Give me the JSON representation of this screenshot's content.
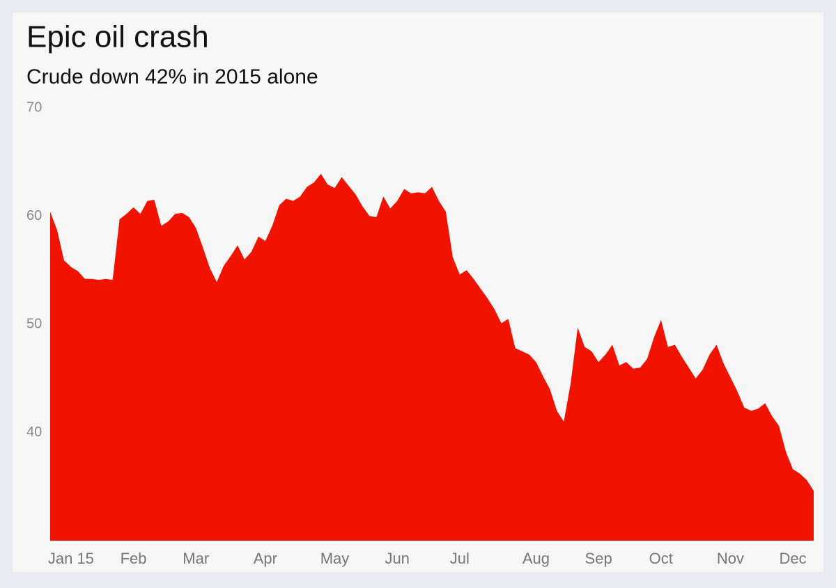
{
  "chart_data": {
    "type": "area",
    "title": "Epic oil crash",
    "subtitle": "Crude down 42% in 2015 alone",
    "categories": [
      null,
      null,
      null,
      "Jan 15",
      null,
      null,
      null,
      null,
      null,
      null,
      null,
      null,
      "Feb",
      null,
      null,
      null,
      null,
      null,
      null,
      null,
      null,
      "Mar",
      null,
      null,
      null,
      null,
      null,
      null,
      null,
      null,
      null,
      "Apr",
      null,
      null,
      null,
      null,
      null,
      null,
      null,
      null,
      null,
      "May",
      null,
      null,
      null,
      null,
      null,
      null,
      null,
      null,
      "Jun",
      null,
      null,
      null,
      null,
      null,
      null,
      null,
      null,
      "Jul",
      null,
      null,
      null,
      null,
      null,
      null,
      null,
      null,
      null,
      null,
      "Aug",
      null,
      null,
      null,
      null,
      null,
      null,
      null,
      null,
      "Sep",
      null,
      null,
      null,
      null,
      null,
      null,
      null,
      null,
      "Oct",
      null,
      null,
      null,
      null,
      null,
      null,
      null,
      null,
      null,
      "Nov",
      null,
      null,
      null,
      null,
      null,
      null,
      null,
      null,
      "Dec",
      null,
      null,
      null
    ],
    "values": [
      60.4,
      58.7,
      55.9,
      55.3,
      54.9,
      54.2,
      54.2,
      54.1,
      54.2,
      54.1,
      59.7,
      60.2,
      60.8,
      60.2,
      61.4,
      61.5,
      59.1,
      59.5,
      60.2,
      60.3,
      59.9,
      58.9,
      57.1,
      55.2,
      53.9,
      55.4,
      56.3,
      57.3,
      56.0,
      56.7,
      58.1,
      57.7,
      59.1,
      61.0,
      61.6,
      61.4,
      61.8,
      62.7,
      63.1,
      63.9,
      62.9,
      62.6,
      63.6,
      62.8,
      62.0,
      60.9,
      60.0,
      59.9,
      61.8,
      60.7,
      61.4,
      62.5,
      62.1,
      62.2,
      62.1,
      62.7,
      61.4,
      60.4,
      56.2,
      54.6,
      55.0,
      54.2,
      53.3,
      52.4,
      51.4,
      50.1,
      50.5,
      47.8,
      47.5,
      47.2,
      46.5,
      45.2,
      44.0,
      42.0,
      41.0,
      44.6,
      49.7,
      47.9,
      47.5,
      46.5,
      47.2,
      48.1,
      46.2,
      46.5,
      45.9,
      46.0,
      46.8,
      48.8,
      50.4,
      47.9,
      48.1,
      47.0,
      46.0,
      45.0,
      45.8,
      47.2,
      48.1,
      46.4,
      45.1,
      43.8,
      42.3,
      42.0,
      42.2,
      42.7,
      41.5,
      40.6,
      38.2,
      36.6,
      36.2,
      35.6,
      34.6
    ],
    "color": "#f01300",
    "ylim": [
      30,
      70
    ],
    "yticks": [
      40,
      50,
      60,
      70
    ],
    "grid": false
  }
}
